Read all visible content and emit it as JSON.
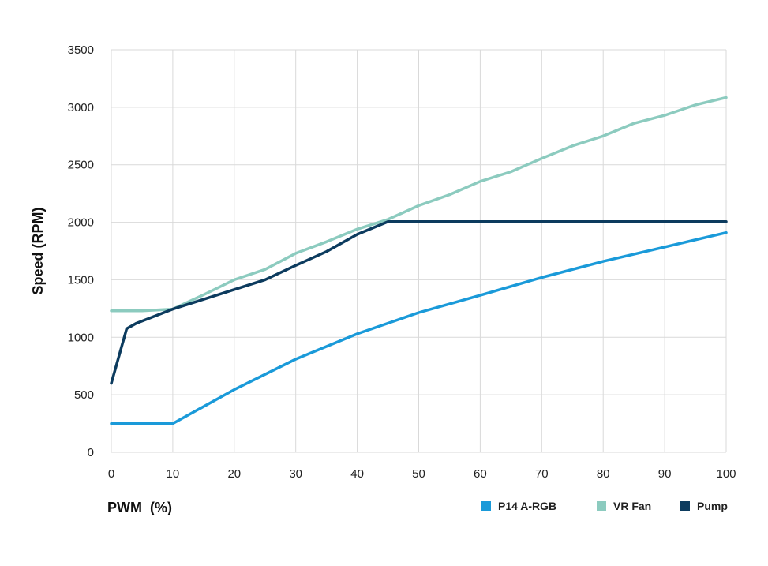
{
  "chart_data": {
    "type": "line",
    "xlabel": "PWM  (%)",
    "ylabel": "Speed  (RPM)",
    "xlim": [
      0,
      100
    ],
    "ylim": [
      0,
      3500
    ],
    "xticks": [
      0,
      10,
      20,
      30,
      40,
      50,
      60,
      70,
      80,
      90,
      100
    ],
    "yticks": [
      0,
      500,
      1000,
      1500,
      2000,
      2500,
      3000,
      3500
    ],
    "grid": true,
    "legend_position": "bottom-right",
    "series": [
      {
        "name": "P14 A-RGB",
        "color": "#1a9ad9",
        "points": [
          [
            0,
            250
          ],
          [
            10,
            250
          ],
          [
            20,
            545
          ],
          [
            30,
            810
          ],
          [
            40,
            1030
          ],
          [
            50,
            1215
          ],
          [
            60,
            1365
          ],
          [
            70,
            1520
          ],
          [
            80,
            1660
          ],
          [
            90,
            1785
          ],
          [
            100,
            1910
          ]
        ]
      },
      {
        "name": "VR Fan",
        "color": "#8ccbbf",
        "points": [
          [
            0,
            1230
          ],
          [
            5,
            1230
          ],
          [
            10,
            1245
          ],
          [
            15,
            1370
          ],
          [
            20,
            1500
          ],
          [
            25,
            1590
          ],
          [
            30,
            1730
          ],
          [
            35,
            1830
          ],
          [
            40,
            1940
          ],
          [
            45,
            2025
          ],
          [
            50,
            2145
          ],
          [
            55,
            2240
          ],
          [
            60,
            2355
          ],
          [
            65,
            2440
          ],
          [
            70,
            2555
          ],
          [
            75,
            2665
          ],
          [
            80,
            2750
          ],
          [
            85,
            2860
          ],
          [
            90,
            2930
          ],
          [
            95,
            3020
          ],
          [
            100,
            3085
          ]
        ]
      },
      {
        "name": "Pump",
        "color": "#0c3b5e",
        "points": [
          [
            0,
            600
          ],
          [
            2.5,
            1075
          ],
          [
            4,
            1120
          ],
          [
            10,
            1245
          ],
          [
            20,
            1415
          ],
          [
            25,
            1500
          ],
          [
            30,
            1625
          ],
          [
            35,
            1745
          ],
          [
            40,
            1895
          ],
          [
            45,
            2005
          ],
          [
            100,
            2005
          ]
        ]
      }
    ]
  }
}
